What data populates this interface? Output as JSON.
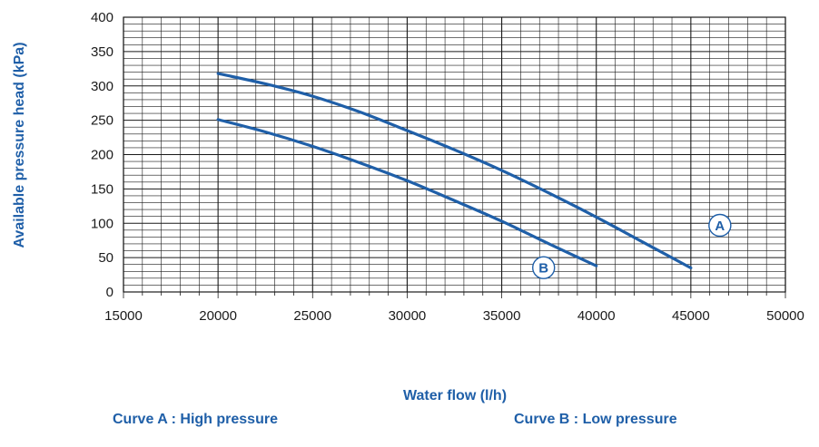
{
  "chart_data": {
    "type": "line",
    "xlabel": "Water flow (l/h)",
    "ylabel": "Available pressure head (kPa)",
    "xlim": [
      15000,
      50000
    ],
    "ylim": [
      0,
      400
    ],
    "x_ticks": [
      "15000",
      "20000",
      "25000",
      "30000",
      "35000",
      "40000",
      "45000",
      "50000"
    ],
    "y_ticks": [
      "0",
      "50",
      "100",
      "150",
      "200",
      "250",
      "300",
      "350",
      "400"
    ],
    "grid": true,
    "series": [
      {
        "name": "A",
        "x": [
          20000,
          22500,
          25000,
          27500,
          30000,
          32500,
          35000,
          37500,
          40000,
          42500,
          45000
        ],
        "y": [
          318,
          303,
          285,
          262,
          235,
          207,
          177,
          144,
          109,
          72,
          35
        ]
      },
      {
        "name": "B",
        "x": [
          20000,
          22500,
          25000,
          27500,
          30000,
          32500,
          35000,
          37500,
          40000
        ],
        "y": [
          251,
          233,
          212,
          188,
          162,
          133,
          103,
          70,
          38
        ]
      }
    ],
    "annotations": [
      "Curve A : High pressure",
      "Curve B : Low pressure"
    ]
  },
  "colors": {
    "curve": "#1f5fa8",
    "grid": "#1a1a1a",
    "text_accent": "#1f5fa8"
  }
}
